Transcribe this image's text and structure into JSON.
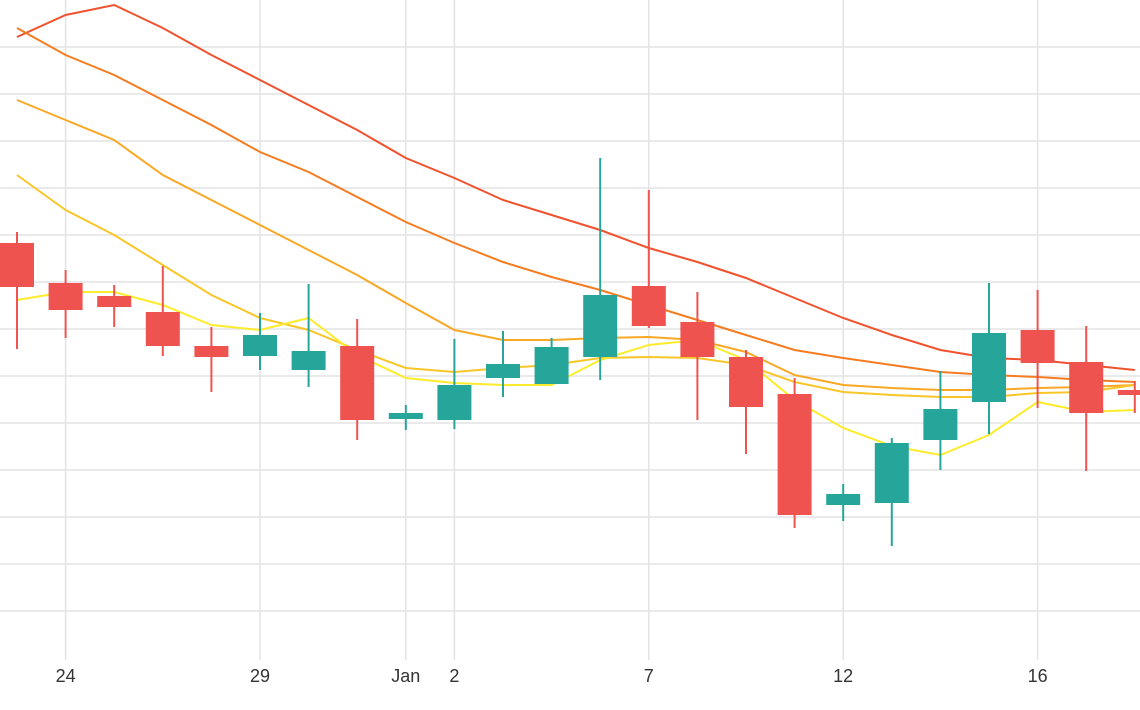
{
  "chart_data": {
    "type": "candlestick",
    "categories": [
      null,
      "24",
      null,
      null,
      null,
      "29",
      null,
      null,
      "Jan",
      "2",
      null,
      null,
      null,
      "7",
      null,
      null,
      null,
      "12",
      null,
      null,
      null,
      "16",
      null,
      null
    ],
    "open": [
      457,
      417,
      404,
      388,
      354,
      344,
      330,
      354,
      281,
      280,
      322,
      316,
      343,
      414,
      378,
      343,
      306,
      195,
      197,
      260,
      298,
      370,
      338,
      310
    ],
    "high": [
      468,
      430,
      415,
      434,
      373,
      387,
      416,
      381,
      295,
      361,
      369,
      362,
      542,
      510,
      408,
      350,
      322,
      216,
      262,
      329,
      417,
      410,
      374,
      319
    ],
    "low": [
      351,
      362,
      373,
      344,
      308,
      330,
      313,
      260,
      270,
      271,
      303,
      316,
      320,
      372,
      280,
      246,
      172,
      179,
      154,
      230,
      266,
      292,
      229,
      287
    ],
    "close": [
      413,
      390,
      393,
      354,
      343,
      365,
      349,
      280,
      287,
      315,
      336,
      353,
      405,
      374,
      343,
      293,
      185,
      206,
      257,
      291,
      367,
      337,
      287,
      305
    ],
    "up_color": "#26a69a",
    "down_color": "#ef5350",
    "lines": [
      {
        "color": "#f0522d",
        "values": [
          663,
          685,
          695,
          672,
          645,
          620,
          595,
          570,
          542,
          522,
          500,
          485,
          470,
          452,
          438,
          422,
          402,
          382,
          365,
          350,
          342,
          340,
          335,
          330
        ]
      },
      {
        "color": "#f57c20",
        "values": [
          672,
          645,
          625,
          600,
          575,
          548,
          528,
          503,
          478,
          457,
          438,
          423,
          410,
          395,
          380,
          365,
          350,
          342,
          335,
          328,
          325,
          323,
          320,
          318
        ]
      },
      {
        "color": "#f9a825",
        "values": [
          600,
          580,
          560,
          525,
          500,
          475,
          450,
          425,
          397,
          370,
          360,
          360,
          362,
          363,
          360,
          348,
          325,
          315,
          312,
          310,
          310,
          312,
          313,
          315
        ]
      },
      {
        "color": "#f9c62a",
        "values": [
          525,
          490,
          465,
          435,
          405,
          382,
          370,
          350,
          332,
          328,
          332,
          335,
          342,
          343,
          342,
          335,
          318,
          308,
          305,
          303,
          303,
          307,
          308,
          315
        ]
      },
      {
        "color": "#fdeb2c",
        "values": [
          400,
          408,
          408,
          395,
          375,
          370,
          382,
          345,
          322,
          317,
          315,
          315,
          340,
          355,
          360,
          340,
          300,
          272,
          254,
          245,
          265,
          298,
          288,
          290
        ]
      }
    ],
    "ylim": [
      40,
      700
    ],
    "yticks": [
      653,
      606,
      559,
      512,
      465,
      418,
      371,
      324,
      277,
      230,
      183,
      136,
      89
    ],
    "grid": true
  }
}
